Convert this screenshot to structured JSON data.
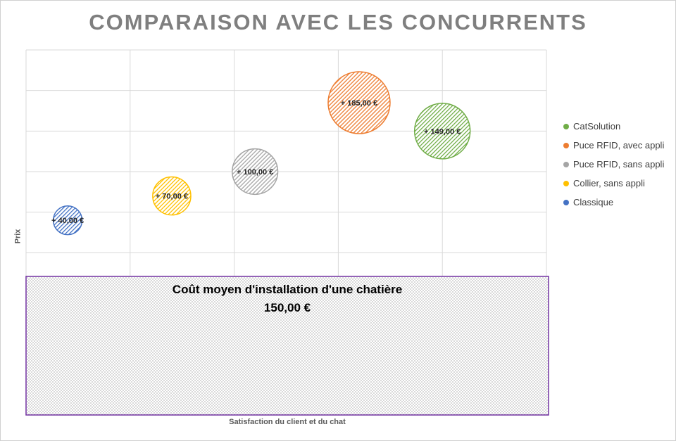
{
  "chart_data": {
    "type": "bubble",
    "title": "COMPARAISON AVEC LES CONCURRENTS",
    "xlabel": "Satisfaction du client et du chat",
    "ylabel": "Prix",
    "xlim": [
      0,
      5
    ],
    "ylim": [
      -4,
      5
    ],
    "grid": true,
    "legend_position": "right",
    "series": [
      {
        "name": "CatSolution",
        "x": 4,
        "y": 3,
        "size": 149,
        "label": "+ 149,00 €",
        "color": "#70ad47"
      },
      {
        "name": "Puce RFID, avec appli",
        "x": 3.2,
        "y": 3.7,
        "size": 185,
        "label": "+ 185,00 €",
        "color": "#ed7d31"
      },
      {
        "name": "Puce RFID, sans appli",
        "x": 2.2,
        "y": 2,
        "size": 100,
        "label": "+ 100,00 €",
        "color": "#a5a5a5"
      },
      {
        "name": "Collier, sans appli",
        "x": 1.4,
        "y": 1.4,
        "size": 70,
        "label": "+ 70,00 €",
        "color": "#ffc000"
      },
      {
        "name": "Classique",
        "x": 0.4,
        "y": 0.8,
        "size": 40,
        "label": "+ 40,00 €",
        "color": "#4472c4"
      }
    ],
    "annotation": {
      "line1": "Coût moyen d'installation  d'une chatière",
      "line2": "150,00 €",
      "color": "#7030a0"
    }
  }
}
